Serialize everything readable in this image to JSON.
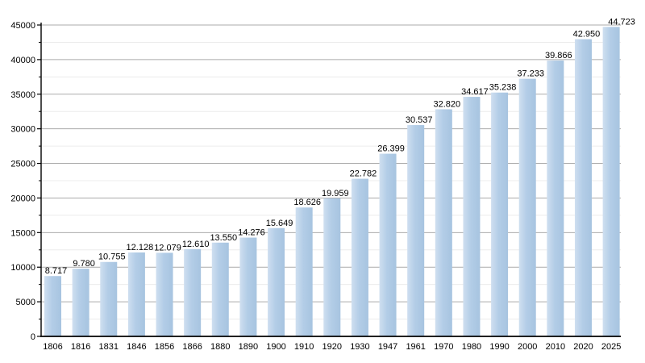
{
  "chart_data": {
    "type": "bar",
    "title": "",
    "xlabel": "",
    "ylabel": "",
    "categories": [
      "1806",
      "1816",
      "1831",
      "1846",
      "1856",
      "1866",
      "1880",
      "1890",
      "1900",
      "1910",
      "1920",
      "1930",
      "1947",
      "1961",
      "1970",
      "1980",
      "1990",
      "2000",
      "2010",
      "2020",
      "2025"
    ],
    "values": [
      8717,
      9780,
      10755,
      12128,
      12079,
      12610,
      13550,
      14276,
      15649,
      18626,
      19959,
      22782,
      26399,
      30537,
      32820,
      34617,
      35238,
      37233,
      39866,
      42950,
      44723
    ],
    "value_labels": [
      "8.717",
      "9.780",
      "10.755",
      "12.128",
      "12.079",
      "12.610",
      "13.550",
      "14.276",
      "15.649",
      "18.626",
      "19.959",
      "22.782",
      "26.399",
      "30.537",
      "32.820",
      "34.617",
      "35.238",
      "37.233",
      "39.866",
      "42.950",
      "44.723"
    ],
    "ylim": [
      0,
      45000
    ],
    "ytick_step": 5000,
    "yminor_step": 2500,
    "ytick_labels": [
      "0",
      "5000",
      "10000",
      "15000",
      "20000",
      "25000",
      "30000",
      "35000",
      "40000",
      "45000"
    ],
    "grid": "horizontal major+minor",
    "legend": "none",
    "colors": {
      "bar_fill": "#b3cde7",
      "bar_fill_light": "#cfdff0",
      "bar_fill_dark": "#a7c4e0",
      "grid_major": "#ababab",
      "grid_minor": "#ececec",
      "axis": "#000000",
      "label_text": "#000000",
      "background": "#ffffff"
    }
  }
}
